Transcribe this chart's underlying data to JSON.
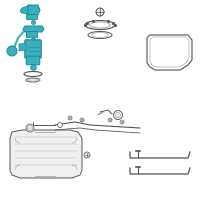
{
  "background_color": "#ffffff",
  "highlight_color": "#3aafc0",
  "line_color": "#555555",
  "light_line": "#999999",
  "fig_width": 2.0,
  "fig_height": 2.0,
  "dpi": 100
}
